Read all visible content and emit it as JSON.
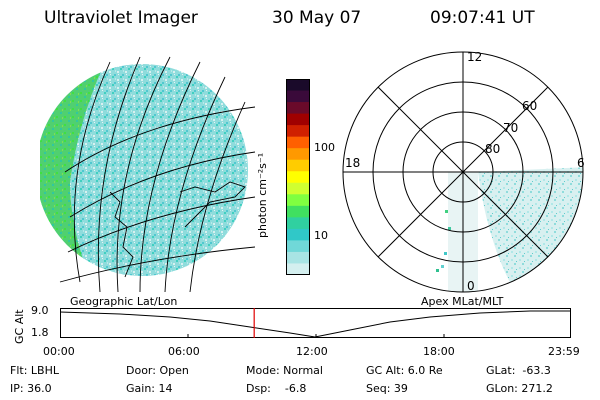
{
  "header": {
    "instrument": "Ultraviolet Imager",
    "date": "30 May 07",
    "time": "09:07:41 UT"
  },
  "colorbar": {
    "label": "photon cm⁻²s⁻¹",
    "ticks": [
      "100",
      "10"
    ],
    "colors": [
      "#1a0a2a",
      "#3a0a3a",
      "#6a0a2a",
      "#a00000",
      "#d02000",
      "#ff6000",
      "#ff9900",
      "#ffcc00",
      "#ffff00",
      "#d0ff30",
      "#80ff40",
      "#40e060",
      "#30d0a0",
      "#30c8c8",
      "#70d8d8",
      "#a8e4e4",
      "#d4efef"
    ]
  },
  "polar_plot": {
    "clock_labels": {
      "top": "12",
      "left": "18",
      "right": "6",
      "bottom": "0"
    },
    "lat_labels": [
      "80",
      "70",
      "60"
    ]
  },
  "timeline": {
    "left_label": "Geographic Lat/Lon",
    "right_label": "Apex MLat/MLT",
    "axis_title": "GC Alt",
    "y_ticks": [
      "9.0",
      "1.8"
    ],
    "x_ticks": [
      "00:00",
      "06:00",
      "12:00",
      "18:00",
      "23:59"
    ],
    "cursor_time_fraction": 0.38
  },
  "info": {
    "flt": "Flt: LBHL",
    "ip": "IP: 36.0",
    "door": "Door: Open",
    "gain": "Gain: 14",
    "mode": "Mode: Normal",
    "dsp": "Dsp:    -6.8",
    "gcalt": "GC Alt: 6.0 Re",
    "seq": "Seq: 39",
    "glat": "GLat:  -63.3",
    "glon": "GLon: 271.2"
  }
}
